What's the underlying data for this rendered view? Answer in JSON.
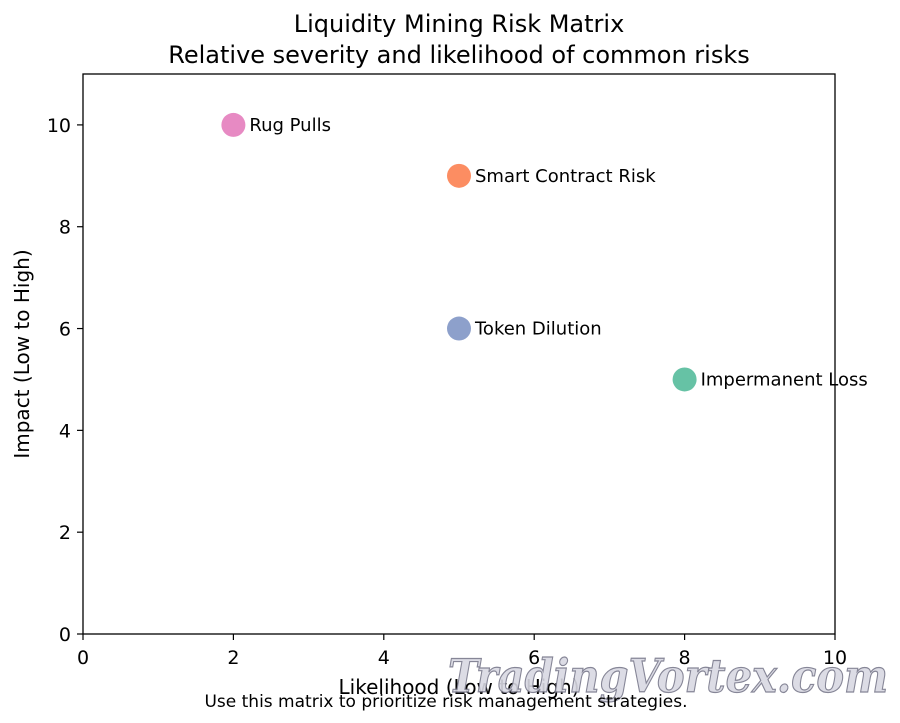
{
  "chart_data": {
    "type": "scatter",
    "title": "Liquidity Mining Risk Matrix",
    "subtitle": "Relative severity and likelihood of common risks",
    "xlabel": "Likelihood (Low to High)",
    "ylabel": "Impact (Low to High)",
    "xlim": [
      0,
      10
    ],
    "ylim": [
      0,
      11
    ],
    "x_ticks": [
      0,
      2,
      4,
      6,
      8,
      10
    ],
    "y_ticks": [
      0,
      2,
      4,
      6,
      8,
      10
    ],
    "grid": false,
    "points": [
      {
        "label": "Impermanent Loss",
        "x": 8,
        "y": 5,
        "color": "#66c2a5"
      },
      {
        "label": "Smart Contract Risk",
        "x": 5,
        "y": 9,
        "color": "#fc8d62"
      },
      {
        "label": "Token Dilution",
        "x": 5,
        "y": 6,
        "color": "#8da0cb"
      },
      {
        "label": "Rug Pulls",
        "x": 2,
        "y": 10,
        "color": "#e78ac3"
      }
    ]
  },
  "caption": "Use this matrix to prioritize risk management strategies.",
  "watermark": "TradingVortex.com"
}
